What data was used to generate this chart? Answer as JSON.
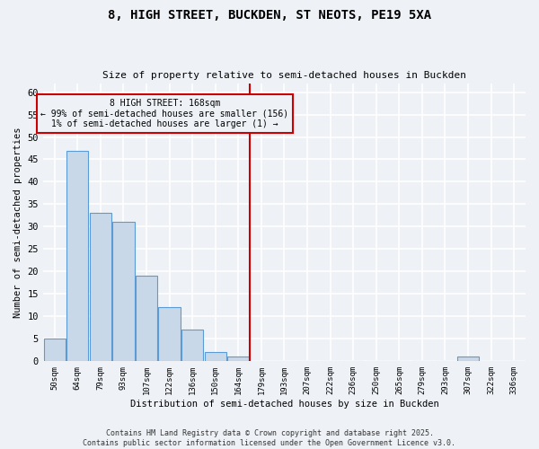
{
  "title1": "8, HIGH STREET, BUCKDEN, ST NEOTS, PE19 5XA",
  "title2": "Size of property relative to semi-detached houses in Buckden",
  "xlabel": "Distribution of semi-detached houses by size in Buckden",
  "ylabel": "Number of semi-detached properties",
  "categories": [
    "50sqm",
    "64sqm",
    "79sqm",
    "93sqm",
    "107sqm",
    "122sqm",
    "136sqm",
    "150sqm",
    "164sqm",
    "179sqm",
    "193sqm",
    "207sqm",
    "222sqm",
    "236sqm",
    "250sqm",
    "265sqm",
    "279sqm",
    "293sqm",
    "307sqm",
    "322sqm",
    "336sqm"
  ],
  "values": [
    5,
    47,
    33,
    31,
    19,
    12,
    7,
    2,
    1,
    0,
    0,
    0,
    0,
    0,
    0,
    0,
    0,
    0,
    1,
    0,
    0
  ],
  "bar_color": "#c8d8e8",
  "bar_edge_color": "#5b9bd5",
  "vline_color": "#cc0000",
  "annotation_text": "8 HIGH STREET: 168sqm\n← 99% of semi-detached houses are smaller (156)\n1% of semi-detached houses are larger (1) →",
  "annotation_box_color": "#cc0000",
  "ylim": [
    0,
    62
  ],
  "yticks": [
    0,
    5,
    10,
    15,
    20,
    25,
    30,
    35,
    40,
    45,
    50,
    55,
    60
  ],
  "footer": "Contains HM Land Registry data © Crown copyright and database right 2025.\nContains public sector information licensed under the Open Government Licence v3.0.",
  "bg_color": "#eef2f7",
  "grid_color": "#ffffff"
}
